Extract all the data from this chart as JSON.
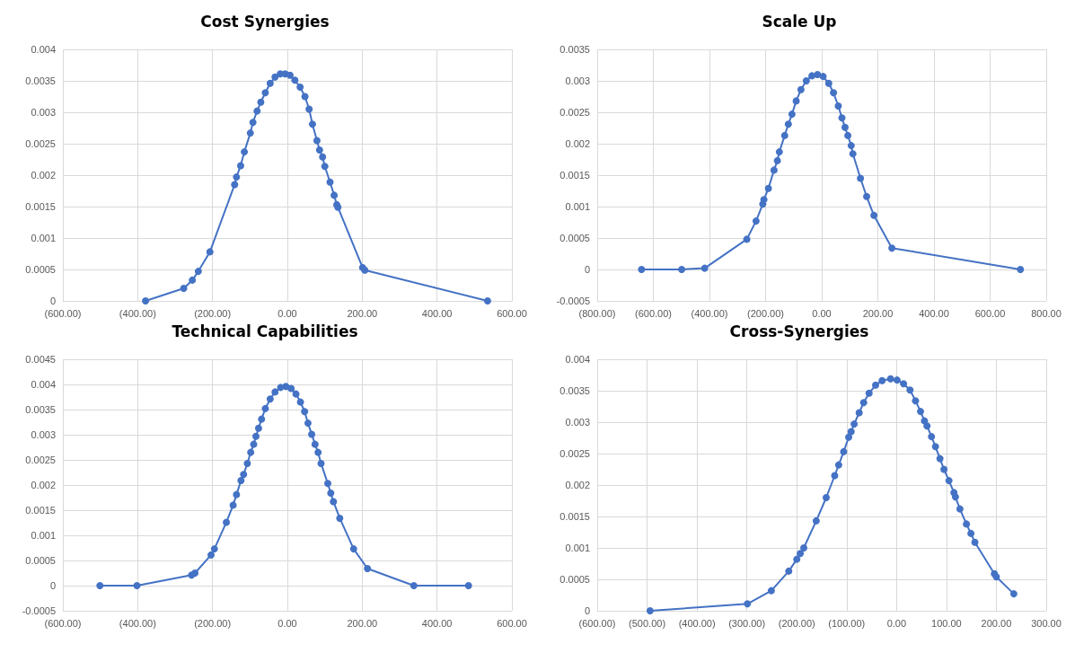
{
  "chart_data": [
    {
      "type": "line",
      "title": "Cost Synergies",
      "marker": "circle",
      "line_style": "solid",
      "grid": true,
      "xlim": [
        -600,
        600
      ],
      "xticks": [
        {
          "value": -600,
          "label": "(600.00)"
        },
        {
          "value": -400,
          "label": "(400.00)"
        },
        {
          "value": -200,
          "label": "(200.00)"
        },
        {
          "value": 0,
          "label": "0.00"
        },
        {
          "value": 200,
          "label": "200.00"
        },
        {
          "value": 400,
          "label": "400.00"
        },
        {
          "value": 600,
          "label": "600.00"
        }
      ],
      "ylim": [
        0,
        0.004
      ],
      "yticks": [
        0,
        0.0005,
        0.001,
        0.0015,
        0.002,
        0.0025,
        0.003,
        0.0035,
        0.004
      ],
      "series": [
        {
          "color": "#4472c4",
          "x": [
            -379,
            -277,
            -254,
            -238,
            -207,
            -141,
            -136,
            -125,
            -115,
            -99,
            -92,
            -81,
            -71,
            -59,
            -46,
            -33,
            -19,
            -6,
            7,
            20,
            34,
            47,
            58,
            67,
            79,
            86,
            94,
            100,
            114,
            125,
            132,
            135,
            201,
            207,
            535
          ],
          "values": [
            0,
            0.0002,
            0.00033,
            0.00047,
            0.00078,
            0.00185,
            0.00197,
            0.00215,
            0.00237,
            0.00267,
            0.00284,
            0.00302,
            0.00316,
            0.00331,
            0.00346,
            0.00356,
            0.00361,
            0.00361,
            0.00359,
            0.00351,
            0.0034,
            0.00325,
            0.00305,
            0.00281,
            0.00255,
            0.0024,
            0.00229,
            0.00214,
            0.00189,
            0.00168,
            0.00153,
            0.00149,
            0.00053,
            0.00049,
            0
          ]
        }
      ]
    },
    {
      "type": "line",
      "title": "Scale Up",
      "marker": "circle",
      "line_style": "solid",
      "grid": true,
      "xlim": [
        -800,
        800
      ],
      "xticks": [
        {
          "value": -800,
          "label": "(800.00)"
        },
        {
          "value": -600,
          "label": "(600.00)"
        },
        {
          "value": -400,
          "label": "(400.00)"
        },
        {
          "value": -200,
          "label": "(200.00)"
        },
        {
          "value": 0,
          "label": "0.00"
        },
        {
          "value": 200,
          "label": "200.00"
        },
        {
          "value": 400,
          "label": "400.00"
        },
        {
          "value": 600,
          "label": "600.00"
        },
        {
          "value": 800,
          "label": "800.00"
        }
      ],
      "ylim": [
        -0.0005,
        0.0035
      ],
      "yticks": [
        -0.0005,
        0,
        0.0005,
        0.001,
        0.0015,
        0.002,
        0.0025,
        0.003,
        0.0035
      ],
      "series": [
        {
          "color": "#4472c4",
          "x": [
            -642,
            -499,
            -417,
            -267,
            -234,
            -210,
            -206,
            -190,
            -170,
            -158,
            -151,
            -132,
            -119,
            -106,
            -91,
            -74,
            -55,
            -35,
            -15,
            5,
            25,
            42,
            59,
            72,
            83,
            93,
            105,
            111,
            138,
            160,
            186,
            250,
            708
          ],
          "values": [
            0,
            0,
            2e-05,
            0.00048,
            0.00077,
            0.00104,
            0.00111,
            0.00129,
            0.00158,
            0.00173,
            0.00187,
            0.00213,
            0.00231,
            0.00247,
            0.00268,
            0.00286,
            0.003,
            0.00308,
            0.0031,
            0.00307,
            0.00296,
            0.00281,
            0.0026,
            0.00241,
            0.00226,
            0.00213,
            0.00197,
            0.00184,
            0.00145,
            0.00116,
            0.00086,
            0.00034,
            0
          ]
        }
      ]
    },
    {
      "type": "line",
      "title": "Technical Capabilities",
      "marker": "circle",
      "line_style": "solid",
      "grid": true,
      "xlim": [
        -600,
        600
      ],
      "xticks": [
        {
          "value": -600,
          "label": "(600.00)"
        },
        {
          "value": -400,
          "label": "(400.00)"
        },
        {
          "value": -200,
          "label": "(200.00)"
        },
        {
          "value": 0,
          "label": "0.00"
        },
        {
          "value": 200,
          "label": "200.00"
        },
        {
          "value": 400,
          "label": "400.00"
        },
        {
          "value": 600,
          "label": "600.00"
        }
      ],
      "ylim": [
        -0.0005,
        0.0045
      ],
      "yticks": [
        -0.0005,
        0,
        0.0005,
        0.001,
        0.0015,
        0.002,
        0.0025,
        0.003,
        0.0035,
        0.004,
        0.0045
      ],
      "series": [
        {
          "color": "#4472c4",
          "x": [
            -501,
            -402,
            -256,
            -247,
            -204,
            -195,
            -163,
            -145,
            -136,
            -124,
            -117,
            -107,
            -98,
            -90,
            -84,
            -77,
            -69,
            -59,
            -46,
            -33,
            -18,
            -4,
            10,
            23,
            35,
            46,
            55,
            65,
            74,
            82,
            90,
            108,
            116,
            123,
            140,
            177,
            214,
            338,
            484
          ],
          "values": [
            0,
            0,
            0.00021,
            0.00025,
            0.00061,
            0.00073,
            0.00126,
            0.0016,
            0.00181,
            0.00209,
            0.00221,
            0.00243,
            0.00265,
            0.00281,
            0.00297,
            0.00313,
            0.00331,
            0.00352,
            0.00371,
            0.00385,
            0.00394,
            0.00396,
            0.00392,
            0.00381,
            0.00365,
            0.00346,
            0.00323,
            0.00301,
            0.00281,
            0.00265,
            0.00243,
            0.00203,
            0.00184,
            0.00167,
            0.00134,
            0.00073,
            0.00034,
            0,
            0
          ]
        }
      ]
    },
    {
      "type": "line",
      "title": "Cross-Synergies",
      "marker": "circle",
      "line_style": "solid",
      "grid": true,
      "xlim": [
        -600,
        300
      ],
      "xticks": [
        {
          "value": -600,
          "label": "(600.00)"
        },
        {
          "value": -500,
          "label": "(500.00)"
        },
        {
          "value": -400,
          "label": "(400.00)"
        },
        {
          "value": -300,
          "label": "(300.00)"
        },
        {
          "value": -200,
          "label": "(200.00)"
        },
        {
          "value": -100,
          "label": "(100.00)"
        },
        {
          "value": 0,
          "label": "0.00"
        },
        {
          "value": 100,
          "label": "100.00"
        },
        {
          "value": 200,
          "label": "200.00"
        },
        {
          "value": 300,
          "label": "300.00"
        }
      ],
      "ylim": [
        0,
        0.004
      ],
      "yticks": [
        0,
        0.0005,
        0.001,
        0.0015,
        0.002,
        0.0025,
        0.003,
        0.0035,
        0.004
      ],
      "series": [
        {
          "color": "#4472c4",
          "x": [
            -494,
            -299,
            -251,
            -216,
            -200,
            -193,
            -186,
            -161,
            -141,
            -124,
            -116,
            -106,
            -96,
            -91,
            -85,
            -75,
            -66,
            -55,
            -42,
            -29,
            -12,
            1,
            14,
            27,
            38,
            48,
            56,
            61,
            70,
            78,
            87,
            95,
            105,
            115,
            118,
            127,
            140,
            149,
            157,
            196,
            200,
            235
          ],
          "values": [
            0,
            0.00011,
            0.00032,
            0.00063,
            0.00082,
            0.00091,
            0.001,
            0.00143,
            0.0018,
            0.00215,
            0.00232,
            0.00253,
            0.00276,
            0.00285,
            0.00297,
            0.00315,
            0.00331,
            0.00346,
            0.00359,
            0.00366,
            0.00369,
            0.00367,
            0.00361,
            0.00351,
            0.00334,
            0.00317,
            0.00302,
            0.00294,
            0.00277,
            0.00261,
            0.00242,
            0.00225,
            0.00207,
            0.00188,
            0.00181,
            0.00162,
            0.00138,
            0.00123,
            0.00109,
            0.00059,
            0.00054,
            0.00027
          ]
        }
      ]
    }
  ]
}
